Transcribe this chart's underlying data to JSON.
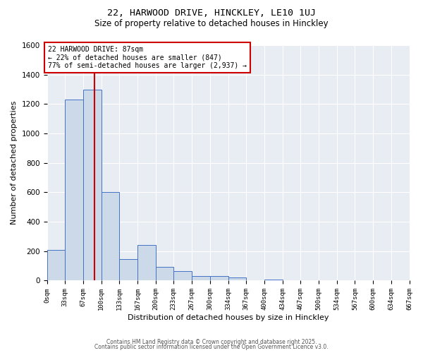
{
  "title1": "22, HARWOOD DRIVE, HINCKLEY, LE10 1UJ",
  "title2": "Size of property relative to detached houses in Hinckley",
  "xlabel": "Distribution of detached houses by size in Hinckley",
  "ylabel": "Number of detached properties",
  "bin_edges": [
    0,
    33,
    67,
    100,
    133,
    167,
    200,
    233,
    267,
    300,
    334,
    367,
    400,
    434,
    467,
    500,
    534,
    567,
    600,
    634,
    667
  ],
  "bar_heights": [
    210,
    1230,
    1300,
    600,
    145,
    240,
    95,
    65,
    30,
    30,
    20,
    0,
    5,
    0,
    0,
    0,
    0,
    0,
    0,
    0
  ],
  "bar_color": "#ccd9e8",
  "bar_edgecolor": "#4472c4",
  "vline_x": 87,
  "vline_color": "#cc0000",
  "annotation_line1": "22 HARWOOD DRIVE: 87sqm",
  "annotation_line2": "← 22% of detached houses are smaller (847)",
  "annotation_line3": "77% of semi-detached houses are larger (2,937) →",
  "annotation_box_color": "#ffffff",
  "annotation_box_edgecolor": "#cc0000",
  "ylim": [
    0,
    1600
  ],
  "yticks": [
    0,
    200,
    400,
    600,
    800,
    1000,
    1200,
    1400,
    1600
  ],
  "bg_color": "#e8edf3",
  "fig_bg_color": "#ffffff",
  "footnote1": "Contains HM Land Registry data © Crown copyright and database right 2025.",
  "footnote2": "Contains public sector information licensed under the Open Government Licence v3.0."
}
